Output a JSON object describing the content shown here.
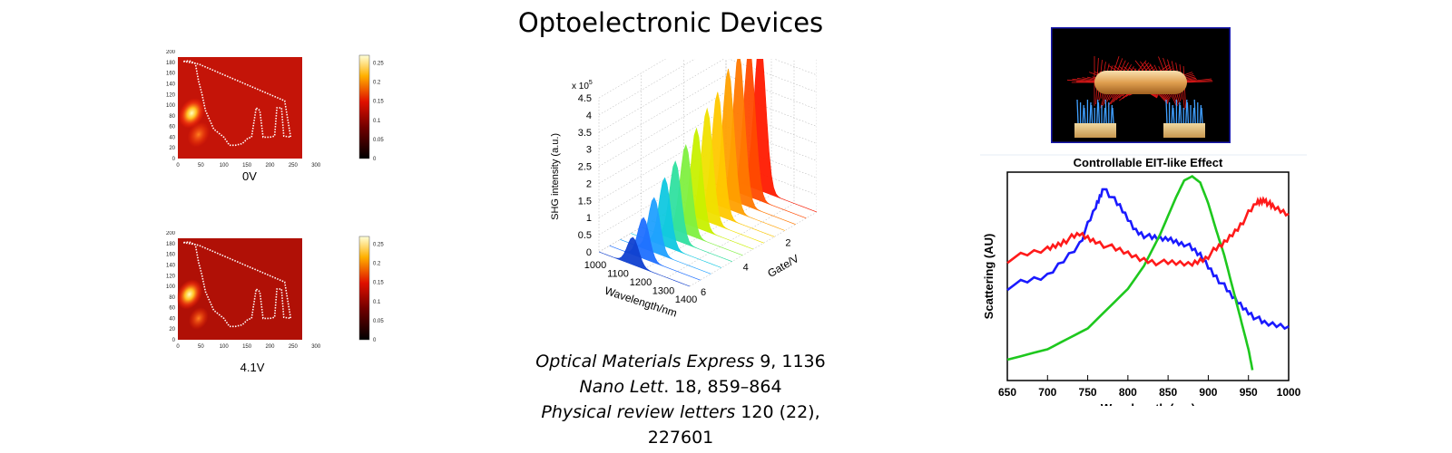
{
  "title": "Optoelectronic Devices",
  "references": [
    {
      "journal": "Optical Materials Express",
      "detail": " 9, 1136"
    },
    {
      "journal": "Nano Lett",
      "detail": ". 18, 859–864"
    },
    {
      "journal": "Physical review letters",
      "detail": " 120 (22), 227601"
    }
  ],
  "maps": {
    "panels": [
      {
        "label": "0V"
      },
      {
        "label": "4.1V"
      }
    ],
    "x_ticks": [
      "0",
      "50",
      "100",
      "150",
      "200",
      "250",
      "300"
    ],
    "y_ticks": [
      "0",
      "20",
      "40",
      "60",
      "80",
      "100",
      "120",
      "140",
      "160",
      "180",
      "200"
    ],
    "colorbar_ticks": [
      "0",
      "0.05",
      "0.1",
      "0.15",
      "0.2",
      "0.25"
    ]
  },
  "chart_data": [
    {
      "type": "heatmap",
      "label": "0V",
      "xlim": [
        0,
        300
      ],
      "ylim": [
        0,
        200
      ],
      "clim": [
        0,
        0.27
      ],
      "background_level": 0.06,
      "hotspots": [
        {
          "x": 30,
          "y": 85,
          "peak": 0.26
        },
        {
          "x": 45,
          "y": 45,
          "peak": 0.16
        }
      ],
      "device_outline": [
        [
          12,
          182
        ],
        [
          40,
          178
        ],
        [
          48,
          176
        ],
        [
          140,
          142
        ],
        [
          232,
          108
        ],
        [
          245,
          40
        ],
        [
          230,
          42
        ],
        [
          225,
          95
        ],
        [
          215,
          95
        ],
        [
          210,
          42
        ],
        [
          200,
          40
        ],
        [
          185,
          40
        ],
        [
          178,
          90
        ],
        [
          170,
          95
        ],
        [
          160,
          40
        ],
        [
          152,
          38
        ],
        [
          140,
          28
        ],
        [
          125,
          25
        ],
        [
          112,
          25
        ],
        [
          100,
          40
        ],
        [
          78,
          55
        ],
        [
          60,
          90
        ],
        [
          52,
          122
        ],
        [
          45,
          145
        ],
        [
          38,
          178
        ],
        [
          25,
          183
        ],
        [
          12,
          182
        ]
      ]
    },
    {
      "type": "heatmap",
      "label": "4.1V",
      "xlim": [
        0,
        300
      ],
      "ylim": [
        0,
        200
      ],
      "clim": [
        0,
        0.27
      ],
      "background_level": 0.05,
      "hotspots": [
        {
          "x": 25,
          "y": 85,
          "peak": 0.25
        },
        {
          "x": 45,
          "y": 40,
          "peak": 0.1
        }
      ],
      "device_outline": [
        [
          12,
          182
        ],
        [
          40,
          178
        ],
        [
          48,
          176
        ],
        [
          140,
          142
        ],
        [
          232,
          108
        ],
        [
          245,
          40
        ],
        [
          230,
          42
        ],
        [
          225,
          95
        ],
        [
          215,
          95
        ],
        [
          210,
          42
        ],
        [
          200,
          40
        ],
        [
          185,
          40
        ],
        [
          178,
          90
        ],
        [
          170,
          95
        ],
        [
          160,
          40
        ],
        [
          152,
          38
        ],
        [
          140,
          28
        ],
        [
          125,
          25
        ],
        [
          112,
          25
        ],
        [
          100,
          40
        ],
        [
          78,
          55
        ],
        [
          60,
          90
        ],
        [
          52,
          122
        ],
        [
          45,
          145
        ],
        [
          38,
          178
        ],
        [
          25,
          183
        ],
        [
          12,
          182
        ]
      ]
    },
    {
      "type": "area",
      "style": "3d-waterfall",
      "xlabel": "Wavelength/nm",
      "ylabel": "Gate/V",
      "zlabel": "SHG intensity (a.u.)",
      "z_multiplier": "x 10^5",
      "x_ticks": [
        1000,
        1100,
        1200,
        1300,
        1400
      ],
      "y_ticks": [
        0,
        2,
        4,
        6
      ],
      "z_ticks": [
        0,
        0.5,
        1,
        1.5,
        2,
        2.5,
        3,
        3.5,
        4,
        4.5
      ],
      "xlim": [
        1000,
        1400
      ],
      "ylim": [
        0,
        6
      ],
      "zlim": [
        0,
        4.5
      ],
      "peak_wavelength_nm": 1150,
      "series": [
        {
          "gate": 0.0,
          "peak": 4.5
        },
        {
          "gate": 0.5,
          "peak": 4.35
        },
        {
          "gate": 1.0,
          "peak": 4.4
        },
        {
          "gate": 1.5,
          "peak": 4.1
        },
        {
          "gate": 2.0,
          "peak": 3.6
        },
        {
          "gate": 2.5,
          "peak": 3.3
        },
        {
          "gate": 3.0,
          "peak": 2.9
        },
        {
          "gate": 3.5,
          "peak": 2.6
        },
        {
          "gate": 4.0,
          "peak": 2.3
        },
        {
          "gate": 4.5,
          "peak": 2.0
        },
        {
          "gate": 5.0,
          "peak": 1.6
        },
        {
          "gate": 5.5,
          "peak": 1.2
        },
        {
          "gate": 6.0,
          "peak": 0.8
        }
      ]
    },
    {
      "type": "line",
      "title": "Controllable EIT-like Effect",
      "xlabel": "Wavelength (nm)",
      "ylabel": "Scattering (AU)",
      "xlim": [
        650,
        1000
      ],
      "x_ticks": [
        650,
        700,
        750,
        800,
        850,
        900,
        950,
        1000
      ],
      "series_colors": [
        "#1a1aff",
        "#1ec81e",
        "#ff1a1a"
      ],
      "series": [
        {
          "x": [
            650,
            700,
            740,
            760,
            770,
            790,
            810,
            830,
            850,
            870,
            890,
            910,
            930,
            950,
            970,
            1000
          ],
          "y": [
            0.45,
            0.5,
            0.66,
            0.83,
            0.93,
            0.83,
            0.72,
            0.68,
            0.68,
            0.66,
            0.6,
            0.5,
            0.4,
            0.33,
            0.27,
            0.26
          ]
        },
        {
          "x": [
            650,
            700,
            750,
            800,
            820,
            840,
            860,
            870,
            880,
            890,
            900,
            910,
            920,
            930,
            940,
            950,
            955
          ],
          "y": [
            0.1,
            0.15,
            0.25,
            0.44,
            0.55,
            0.7,
            0.88,
            0.96,
            0.98,
            0.95,
            0.85,
            0.72,
            0.6,
            0.45,
            0.3,
            0.15,
            0.05
          ]
        },
        {
          "x": [
            650,
            700,
            720,
            740,
            760,
            790,
            820,
            850,
            880,
            900,
            920,
            940,
            960,
            970,
            980,
            1000
          ],
          "y": [
            0.58,
            0.63,
            0.67,
            0.7,
            0.67,
            0.62,
            0.58,
            0.56,
            0.56,
            0.6,
            0.66,
            0.75,
            0.85,
            0.87,
            0.83,
            0.8
          ]
        }
      ]
    }
  ]
}
